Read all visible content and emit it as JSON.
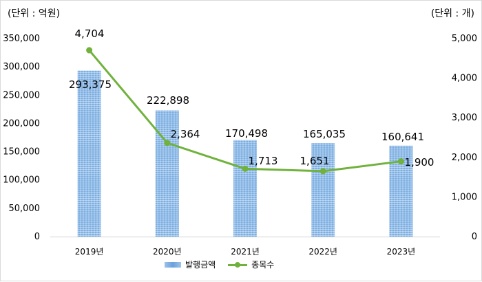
{
  "chart_data": {
    "type": "bar",
    "categories": [
      "2019년",
      "2020년",
      "2021년",
      "2022년",
      "2023년"
    ],
    "left_unit": "(단위 : 억원)",
    "right_unit": "(단위 : 개)",
    "left_axis": {
      "ylim": [
        0,
        350000
      ],
      "ticks": [
        "0",
        "50,000",
        "100,000",
        "150,000",
        "200,000",
        "250,000",
        "300,000",
        "350,000"
      ]
    },
    "right_axis": {
      "ylim": [
        0,
        5000
      ],
      "ticks": [
        "0",
        "1,000",
        "2,000",
        "3,000",
        "4,000",
        "5,000"
      ]
    },
    "series": [
      {
        "name": "발행금액",
        "kind": "bar",
        "axis": "left",
        "color": "#7eb0e4",
        "values": [
          293375,
          222898,
          170498,
          165035,
          160641
        ],
        "labels": [
          "293,375",
          "222,898",
          "170,498",
          "165,035",
          "160,641"
        ]
      },
      {
        "name": "종목수",
        "kind": "line",
        "axis": "right",
        "color": "#70b23c",
        "values": [
          4704,
          2364,
          1713,
          1651,
          1900
        ],
        "labels": [
          "4,704",
          "2,364",
          "1,713",
          "1,651",
          "1,900"
        ]
      }
    ],
    "grid": false,
    "legend": "bottom"
  }
}
